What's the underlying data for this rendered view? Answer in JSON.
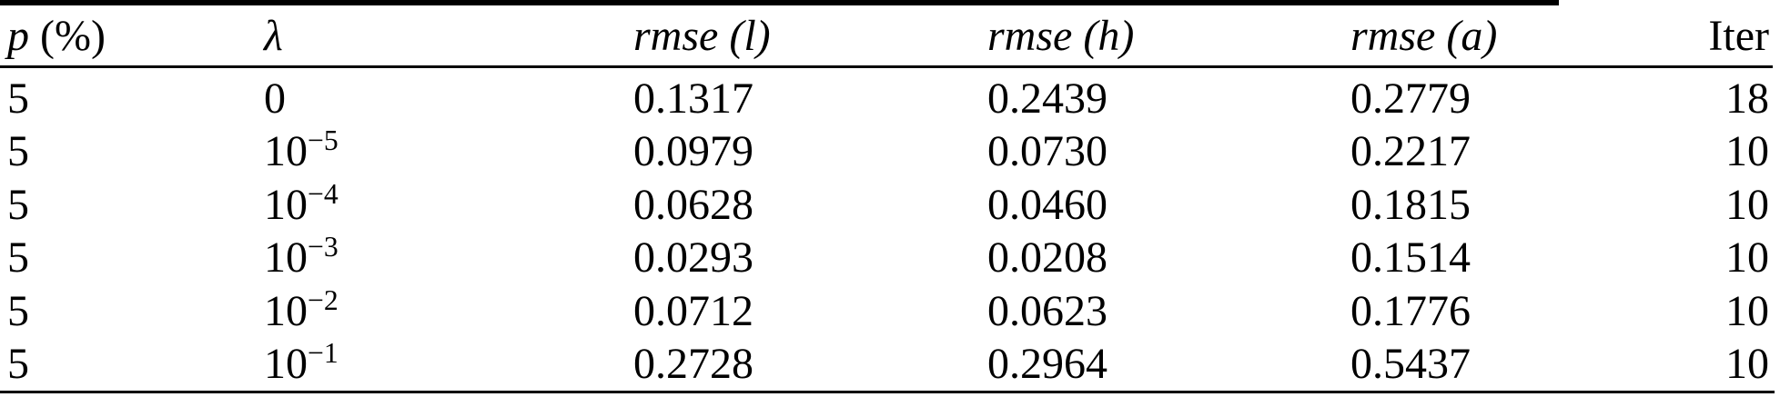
{
  "colors": {
    "background": "#ffffff",
    "text": "#000000",
    "rule": "#000000"
  },
  "table": {
    "headers": {
      "p_main": "p",
      "p_suffix": " (%)",
      "lambda": "λ",
      "rmse_l": "rmse (l)",
      "rmse_h": "rmse (h)",
      "rmse_a": "rmse (a)",
      "iter": "Iter"
    },
    "rows": [
      {
        "p": "5",
        "lambda_base": "0",
        "lambda_exp": "",
        "rmse_l": "0.1317",
        "rmse_h": "0.2439",
        "rmse_a": "0.2779",
        "iter": "18"
      },
      {
        "p": "5",
        "lambda_base": "10",
        "lambda_exp": "−5",
        "rmse_l": "0.0979",
        "rmse_h": "0.0730",
        "rmse_a": "0.2217",
        "iter": "10"
      },
      {
        "p": "5",
        "lambda_base": "10",
        "lambda_exp": "−4",
        "rmse_l": "0.0628",
        "rmse_h": "0.0460",
        "rmse_a": "0.1815",
        "iter": "10"
      },
      {
        "p": "5",
        "lambda_base": "10",
        "lambda_exp": "−3",
        "rmse_l": "0.0293",
        "rmse_h": "0.0208",
        "rmse_a": "0.1514",
        "iter": "10"
      },
      {
        "p": "5",
        "lambda_base": "10",
        "lambda_exp": "−2",
        "rmse_l": "0.0712",
        "rmse_h": "0.0623",
        "rmse_a": "0.1776",
        "iter": "10"
      },
      {
        "p": "5",
        "lambda_base": "10",
        "lambda_exp": "−1",
        "rmse_l": "0.2728",
        "rmse_h": "0.2964",
        "rmse_a": "0.5437",
        "iter": "10"
      }
    ]
  }
}
